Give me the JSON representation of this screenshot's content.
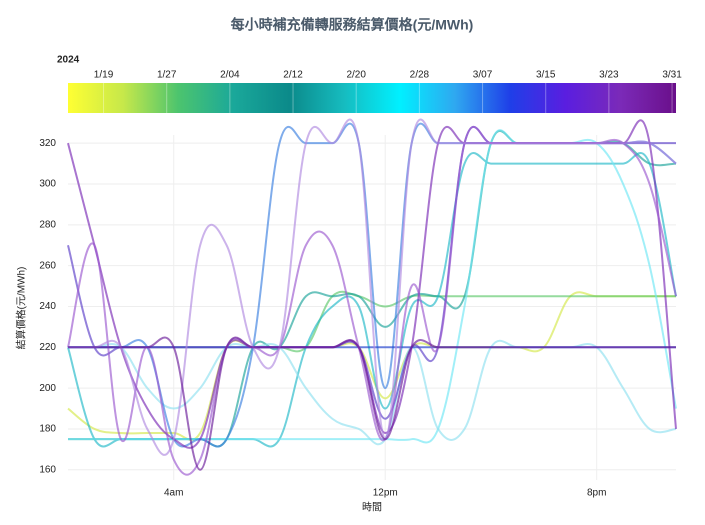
{
  "chart_data": {
    "type": "line",
    "title": "每小時補充備轉服務結算價格(元/MWh)",
    "x_label": "時間",
    "y_label": "結算價格(元/MWh)",
    "x": [
      0,
      1,
      2,
      3,
      4,
      5,
      6,
      7,
      8,
      9,
      10,
      11,
      12,
      13,
      14,
      15,
      16,
      17,
      18,
      19,
      20,
      21,
      22,
      23
    ],
    "xlim": [
      0,
      23
    ],
    "xticks": [
      {
        "value": 4,
        "label": "4am"
      },
      {
        "value": 12,
        "label": "12pm"
      },
      {
        "value": 20,
        "label": "8pm"
      }
    ],
    "ylim": [
      155,
      324
    ],
    "yticks": [
      160,
      180,
      200,
      220,
      240,
      260,
      280,
      300,
      320
    ],
    "grid": true,
    "colorbar": {
      "title": "2024",
      "lim": [
        -0.5,
        76.5
      ],
      "ticks": [
        {
          "value": 4,
          "label": "1/19"
        },
        {
          "value": 12,
          "label": "1/27"
        },
        {
          "value": 20,
          "label": "2/04"
        },
        {
          "value": 28,
          "label": "2/12"
        },
        {
          "value": 36,
          "label": "2/20"
        },
        {
          "value": 44,
          "label": "2/28"
        },
        {
          "value": 52,
          "label": "3/07"
        },
        {
          "value": 60,
          "label": "3/15"
        },
        {
          "value": 68,
          "label": "3/23"
        },
        {
          "value": 76,
          "label": "3/31"
        }
      ],
      "colors": [
        "#ffff33",
        "#c6e84a",
        "#4cc46e",
        "#1aa89a",
        "#0b8a8a",
        "#16bcc0",
        "#00f0ff",
        "#2fa8f0",
        "#1f3fe8",
        "#5a1ee0",
        "#7b2ab8",
        "#6a0f8a"
      ]
    },
    "series": [
      {
        "color": "#d4e84a",
        "values": [
          190,
          180,
          178,
          178,
          178,
          178,
          220,
          220,
          220,
          220,
          220,
          220,
          195,
          220,
          220,
          220,
          220,
          220,
          220,
          245,
          245,
          245,
          245,
          245
        ]
      },
      {
        "color": "#5cc86a",
        "values": [
          220,
          220,
          220,
          220,
          220,
          220,
          220,
          220,
          220,
          220,
          245,
          245,
          240,
          245,
          245,
          245,
          245,
          245,
          245,
          245,
          245,
          245,
          245,
          245
        ]
      },
      {
        "color": "#1aa39a",
        "values": [
          175,
          175,
          175,
          175,
          175,
          175,
          175,
          220,
          220,
          245,
          245,
          245,
          230,
          245,
          245,
          245,
          320,
          320,
          320,
          320,
          320,
          320,
          310,
          310
        ]
      },
      {
        "color": "#20b8c8",
        "values": [
          220,
          175,
          175,
          175,
          175,
          175,
          175,
          175,
          175,
          220,
          240,
          240,
          190,
          240,
          245,
          310,
          310,
          310,
          310,
          310,
          310,
          310,
          310,
          245
        ]
      },
      {
        "color": "#6ee6f5",
        "values": [
          175,
          175,
          175,
          175,
          175,
          175,
          175,
          175,
          175,
          175,
          175,
          175,
          175,
          175,
          180,
          240,
          320,
          320,
          320,
          320,
          320,
          300,
          260,
          190
        ]
      },
      {
        "color": "#8fe0f0",
        "values": [
          220,
          220,
          220,
          200,
          190,
          200,
          220,
          220,
          220,
          200,
          185,
          180,
          175,
          220,
          180,
          180,
          220,
          220,
          220,
          220,
          220,
          200,
          180,
          180
        ]
      },
      {
        "color": "#3a7fe0",
        "values": [
          220,
          220,
          220,
          220,
          175,
          175,
          175,
          220,
          320,
          320,
          320,
          320,
          200,
          320,
          320,
          320,
          320,
          320,
          320,
          320,
          320,
          320,
          320,
          310
        ]
      },
      {
        "color": "#1f3fd0",
        "values": [
          220,
          220,
          220,
          220,
          220,
          220,
          220,
          220,
          220,
          220,
          220,
          220,
          220,
          220,
          220,
          220,
          220,
          220,
          220,
          220,
          220,
          220,
          220,
          220
        ]
      },
      {
        "color": "#5a3ec8",
        "values": [
          270,
          220,
          220,
          220,
          220,
          220,
          220,
          220,
          220,
          220,
          220,
          220,
          185,
          220,
          220,
          320,
          320,
          320,
          320,
          320,
          320,
          320,
          320,
          320
        ]
      },
      {
        "color": "#7a2ab5",
        "values": [
          320,
          270,
          220,
          190,
          175,
          175,
          220,
          220,
          220,
          220,
          220,
          220,
          178,
          220,
          320,
          320,
          320,
          320,
          320,
          320,
          320,
          320,
          320,
          180
        ]
      },
      {
        "color": "#9b59d0",
        "values": [
          220,
          270,
          175,
          220,
          165,
          165,
          220,
          220,
          220,
          270,
          270,
          220,
          175,
          250,
          220,
          320,
          320,
          320,
          320,
          320,
          320,
          320,
          300,
          245
        ]
      },
      {
        "color": "#b18ae0",
        "values": [
          220,
          220,
          220,
          180,
          175,
          270,
          270,
          220,
          220,
          320,
          320,
          320,
          175,
          320,
          320,
          320,
          320,
          320,
          320,
          320,
          320,
          320,
          320,
          310
        ]
      },
      {
        "color": "#6a1b9a",
        "values": [
          220,
          220,
          220,
          220,
          220,
          160,
          220,
          220,
          220,
          220,
          220,
          220,
          175,
          220,
          220,
          220,
          220,
          220,
          220,
          220,
          220,
          220,
          220,
          220
        ]
      }
    ]
  }
}
